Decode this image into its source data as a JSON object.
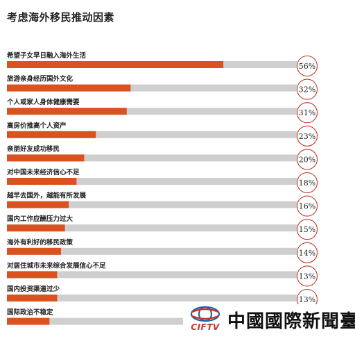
{
  "colors": {
    "bar": "#d9521f",
    "track": "#cfcfcf",
    "circle": "#c0392b",
    "logo_red": "#c0392b",
    "logo_blue": "#1f5fa8"
  },
  "logo": {
    "abbr": "CIFTV",
    "name": "中國國際新聞臺",
    "icon": "globe-icon"
  },
  "chart_data": {
    "type": "bar",
    "orientation": "horizontal",
    "title": "考虑海外移民推动因素",
    "xlim": [
      0,
      100
    ],
    "grid": false,
    "legend": "none",
    "categories": [
      "希望子女早日融入海外生活",
      "旅游亲身经历国外文化",
      "个人或家人身体健康需要",
      "高房价推高个人资产",
      "亲朋好友成功移民",
      "对中国未来经济信心不足",
      "越早去国外，越能有所发展",
      "国内工作应酬压力过大",
      "海外有利好的移民政策",
      "对居住城市未来综合发展信心不足",
      "国内投资渠道过少",
      "国际政治不稳定"
    ],
    "values": [
      56,
      32,
      31,
      23,
      20,
      18,
      16,
      15,
      14,
      13,
      13,
      11
    ],
    "value_labels": [
      "56%",
      "32%",
      "31%",
      "23%",
      "20%",
      "18%",
      "16%",
      "15%",
      "14%",
      "13%",
      "13%",
      ""
    ]
  }
}
